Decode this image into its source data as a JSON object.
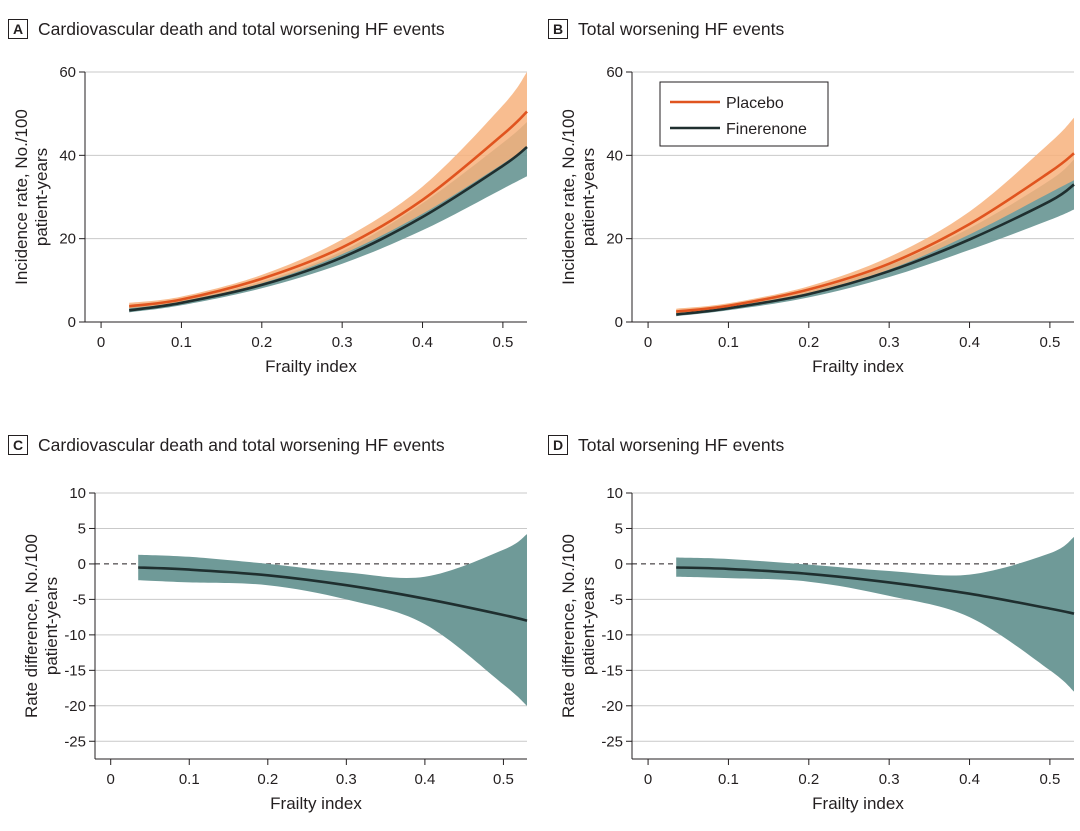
{
  "colors": {
    "placebo_line": "#e0541f",
    "placebo_band": "#f7b27d",
    "finerenone_line": "#1f2f2f",
    "finerenone_band": "#6f9a98",
    "grid": "#c9c9c9",
    "axis": "#231f20"
  },
  "panels": [
    {
      "letter": "A",
      "title": "Cardiovascular death and total worsening HF events"
    },
    {
      "letter": "B",
      "title": "Total worsening HF events"
    },
    {
      "letter": "C",
      "title": "Cardiovascular death and total worsening HF events"
    },
    {
      "letter": "D",
      "title": "Total worsening HF events"
    }
  ],
  "chart_data": [
    {
      "type": "line",
      "panel": "A",
      "title": "Cardiovascular death and total worsening HF events",
      "xlabel": "Frailty index",
      "ylabel": [
        "Incidence rate, No./100",
        "patient-years"
      ],
      "xlim": [
        -0.02,
        0.53
      ],
      "ylim": [
        0,
        60
      ],
      "xticks": [
        0,
        0.1,
        0.2,
        0.3,
        0.4,
        0.5
      ],
      "xtick_labels": [
        "0",
        "0.1",
        "0.2",
        "0.3",
        "0.4",
        "0.5"
      ],
      "yticks": [
        0,
        20,
        40,
        60
      ],
      "ytick_labels": [
        "0",
        "20",
        "40",
        "60"
      ],
      "grid": "horizontal",
      "x": [
        0.035,
        0.1,
        0.2,
        0.3,
        0.4,
        0.5,
        0.53
      ],
      "series": [
        {
          "name": "Placebo",
          "values": [
            3.8,
            5.4,
            10.4,
            17.9,
            29.3,
            45.0,
            50.5
          ],
          "lower": [
            3.3,
            4.8,
            9.3,
            16.3,
            26.0,
            38.0,
            42.0
          ],
          "upper": [
            4.6,
            6.1,
            11.3,
            19.8,
            32.5,
            52.0,
            60.0
          ]
        },
        {
          "name": "Finerenone",
          "values": [
            2.8,
            4.6,
            8.9,
            15.5,
            25.2,
            37.5,
            42.0
          ],
          "lower": [
            2.3,
            4.0,
            8.1,
            14.0,
            22.0,
            32.0,
            35.0
          ],
          "upper": [
            3.9,
            5.2,
            9.7,
            17.0,
            28.5,
            43.0,
            48.0
          ]
        }
      ]
    },
    {
      "type": "line",
      "panel": "B",
      "title": "Total worsening HF events",
      "xlabel": "Frailty index",
      "ylabel": [
        "Incidence rate, No./100",
        "patient-years"
      ],
      "xlim": [
        -0.02,
        0.53
      ],
      "ylim": [
        0,
        60
      ],
      "xticks": [
        0,
        0.1,
        0.2,
        0.3,
        0.4,
        0.5
      ],
      "xtick_labels": [
        "0",
        "0.1",
        "0.2",
        "0.3",
        "0.4",
        "0.5"
      ],
      "yticks": [
        0,
        20,
        40,
        60
      ],
      "ytick_labels": [
        "0",
        "20",
        "40",
        "60"
      ],
      "grid": "horizontal",
      "legend": {
        "position": "top-left",
        "entries": [
          "Placebo",
          "Finerenone"
        ]
      },
      "x": [
        0.035,
        0.1,
        0.2,
        0.3,
        0.4,
        0.5,
        0.53
      ],
      "series": [
        {
          "name": "Placebo",
          "values": [
            2.5,
            3.9,
            7.8,
            14.0,
            23.5,
            36.0,
            40.5
          ],
          "lower": [
            2.1,
            3.4,
            7.0,
            12.6,
            21.0,
            31.0,
            34.0
          ],
          "upper": [
            3.2,
            4.5,
            8.6,
            15.6,
            26.5,
            43.0,
            49.0
          ]
        },
        {
          "name": "Finerenone",
          "values": [
            1.8,
            3.3,
            6.7,
            12.2,
            19.8,
            29.0,
            33.0
          ],
          "lower": [
            1.4,
            2.8,
            5.9,
            10.8,
            17.3,
            24.5,
            27.0
          ],
          "upper": [
            2.6,
            3.8,
            7.4,
            13.6,
            22.5,
            34.0,
            39.0
          ]
        }
      ]
    },
    {
      "type": "line",
      "panel": "C",
      "title": "Cardiovascular death and total worsening HF events",
      "xlabel": "Frailty index",
      "ylabel": [
        "Rate difference, No./100",
        "patient-years"
      ],
      "xlim": [
        -0.02,
        0.53
      ],
      "ylim": [
        -27.5,
        10
      ],
      "xticks": [
        0,
        0.1,
        0.2,
        0.3,
        0.4,
        0.5
      ],
      "xtick_labels": [
        "0",
        "0.1",
        "0.2",
        "0.3",
        "0.4",
        "0.5"
      ],
      "yticks": [
        10,
        5,
        0,
        -5,
        -10,
        -15,
        -20,
        -25
      ],
      "ytick_labels": [
        "10",
        "5",
        "0",
        "-5",
        "-10",
        "-15",
        "-20",
        "-25"
      ],
      "grid": "horizontal",
      "reference_line": 0,
      "x": [
        0.035,
        0.1,
        0.2,
        0.3,
        0.4,
        0.5,
        0.53
      ],
      "series": [
        {
          "name": "",
          "values": [
            -0.5,
            -0.8,
            -1.6,
            -3.0,
            -4.9,
            -7.2,
            -8.0
          ],
          "lower": [
            -2.3,
            -2.6,
            -3.0,
            -5.0,
            -8.5,
            -17.0,
            -20.0
          ],
          "upper": [
            1.3,
            1.0,
            0.0,
            -1.2,
            -1.8,
            2.0,
            4.2
          ]
        }
      ]
    },
    {
      "type": "line",
      "panel": "D",
      "title": "Total worsening HF events",
      "xlabel": "Frailty index",
      "ylabel": [
        "Rate difference, No./100",
        "patient-years"
      ],
      "xlim": [
        -0.02,
        0.53
      ],
      "ylim": [
        -27.5,
        10
      ],
      "xticks": [
        0,
        0.1,
        0.2,
        0.3,
        0.4,
        0.5
      ],
      "xtick_labels": [
        "0",
        "0.1",
        "0.2",
        "0.3",
        "0.4",
        "0.5"
      ],
      "yticks": [
        10,
        5,
        0,
        -5,
        -10,
        -15,
        -20,
        -25
      ],
      "ytick_labels": [
        "10",
        "5",
        "0",
        "-5",
        "-10",
        "-15",
        "-20",
        "-25"
      ],
      "grid": "horizontal",
      "reference_line": 0,
      "x": [
        0.035,
        0.1,
        0.2,
        0.3,
        0.4,
        0.5,
        0.53
      ],
      "series": [
        {
          "name": "",
          "values": [
            -0.5,
            -0.7,
            -1.4,
            -2.6,
            -4.2,
            -6.3,
            -7.0
          ],
          "lower": [
            -1.8,
            -2.0,
            -2.5,
            -4.5,
            -7.5,
            -15.0,
            -18.0
          ],
          "upper": [
            0.9,
            0.7,
            -0.1,
            -1.0,
            -1.5,
            1.5,
            3.8
          ]
        }
      ]
    }
  ]
}
